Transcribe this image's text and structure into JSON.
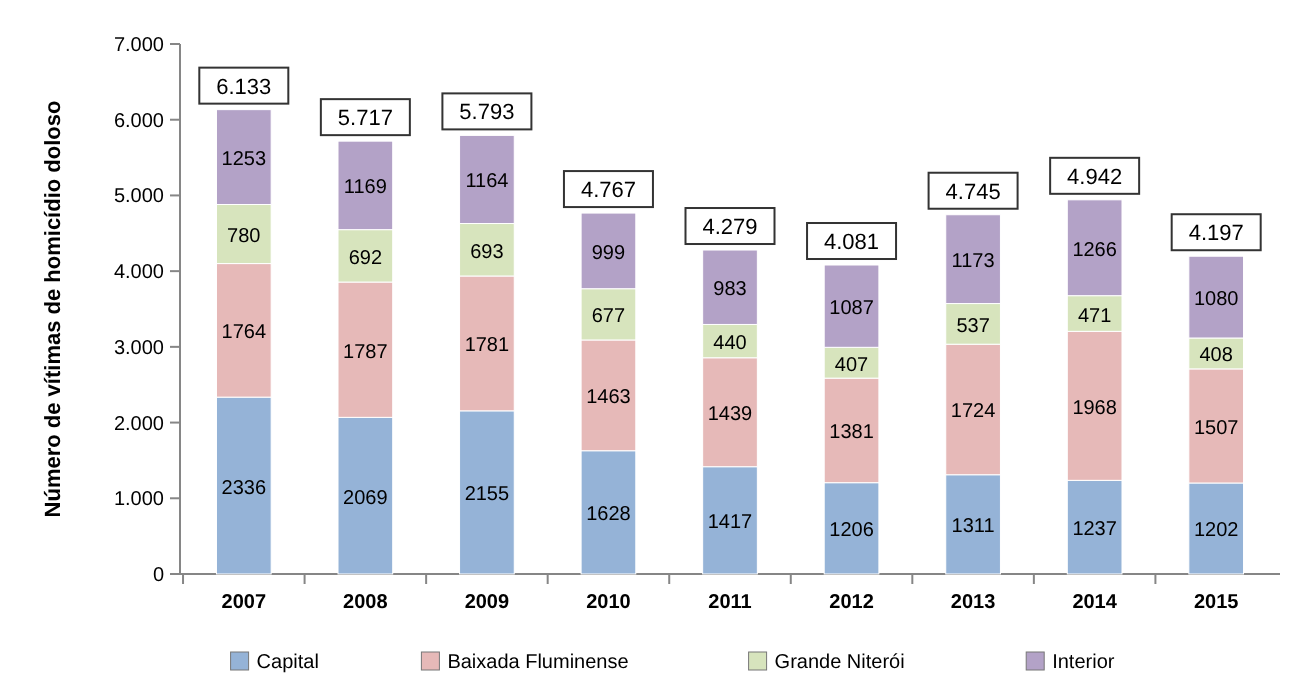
{
  "chart_data": {
    "type": "bar",
    "stacked": true,
    "ylabel": "Número de vítimas de homicídio doloso",
    "categories": [
      "2007",
      "2008",
      "2009",
      "2010",
      "2011",
      "2012",
      "2013",
      "2014",
      "2015"
    ],
    "series": [
      {
        "name": "Capital",
        "color": "#95b3d7",
        "values": [
          2336,
          2069,
          2155,
          1628,
          1417,
          1206,
          1311,
          1237,
          1202
        ]
      },
      {
        "name": "Baixada Fluminense",
        "color": "#e6b9b8",
        "values": [
          1764,
          1787,
          1781,
          1463,
          1439,
          1381,
          1724,
          1968,
          1507
        ]
      },
      {
        "name": "Grande Niterói",
        "color": "#d7e4bd",
        "values": [
          780,
          692,
          693,
          677,
          440,
          407,
          537,
          471,
          408
        ]
      },
      {
        "name": "Interior",
        "color": "#b3a2c7",
        "values": [
          1253,
          1169,
          1164,
          999,
          983,
          1087,
          1173,
          1266,
          1080
        ]
      }
    ],
    "totals": [
      "6.133",
      "5.717",
      "5.793",
      "4.767",
      "4.279",
      "4.081",
      "4.745",
      "4.942",
      "4.197"
    ],
    "data_labels": true,
    "ylim": [
      0,
      7000
    ],
    "yticks": [
      {
        "value": 0,
        "label": "0"
      },
      {
        "value": 1000,
        "label": "1.000"
      },
      {
        "value": 2000,
        "label": "2.000"
      },
      {
        "value": 3000,
        "label": "3.000"
      },
      {
        "value": 4000,
        "label": "4.000"
      },
      {
        "value": 5000,
        "label": "5.000"
      },
      {
        "value": 6000,
        "label": "6.000"
      },
      {
        "value": 7000,
        "label": "7.000"
      }
    ],
    "legend": "bottom"
  }
}
